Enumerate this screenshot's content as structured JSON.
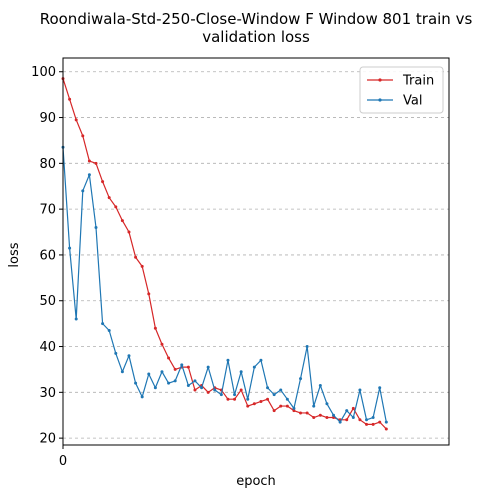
{
  "chart_data": {
    "type": "line",
    "title_lines": [
      "Roondiwala-Std-250-Close-Window F Window 801 train vs",
      "validation loss"
    ],
    "xlabel": "epoch",
    "ylabel": "loss",
    "xlim": [
      0,
      58.5
    ],
    "ylim": [
      18.5,
      103
    ],
    "x_ticks": [
      0
    ],
    "y_ticks": [
      20,
      30,
      40,
      50,
      60,
      70,
      80,
      90,
      100
    ],
    "grid": "y-dashed",
    "legend_position": "top-right",
    "series": [
      {
        "name": "Train",
        "color": "#d62728",
        "values": [
          98.5,
          94.0,
          89.5,
          86.0,
          80.5,
          80.0,
          76.0,
          72.5,
          70.5,
          67.5,
          65.0,
          59.5,
          57.5,
          51.5,
          44.0,
          40.5,
          37.5,
          35.0,
          35.5,
          35.5,
          30.5,
          31.5,
          30.0,
          31.0,
          30.5,
          28.5,
          28.5,
          30.5,
          27.0,
          27.5,
          28.0,
          28.5,
          26.0,
          27.0,
          27.0,
          26.0,
          25.5,
          25.5,
          24.5,
          25.0,
          24.5,
          24.5,
          24.0,
          24.0,
          26.5,
          24.0,
          23.0,
          23.0,
          23.5,
          22.0
        ]
      },
      {
        "name": "Val",
        "color": "#1f77b4",
        "values": [
          83.5,
          61.5,
          46.0,
          74.0,
          77.5,
          66.0,
          45.0,
          43.5,
          38.5,
          34.5,
          38.0,
          32.0,
          29.0,
          34.0,
          31.0,
          34.5,
          32.0,
          32.5,
          36.0,
          31.5,
          32.5,
          31.0,
          35.5,
          30.5,
          29.5,
          37.0,
          29.5,
          34.5,
          28.5,
          35.5,
          37.0,
          31.0,
          29.5,
          30.5,
          28.5,
          26.5,
          33.0,
          40.0,
          27.0,
          31.5,
          27.5,
          25.0,
          23.5,
          26.0,
          24.5,
          30.5,
          24.0,
          24.5,
          31.0,
          23.5
        ]
      }
    ]
  }
}
